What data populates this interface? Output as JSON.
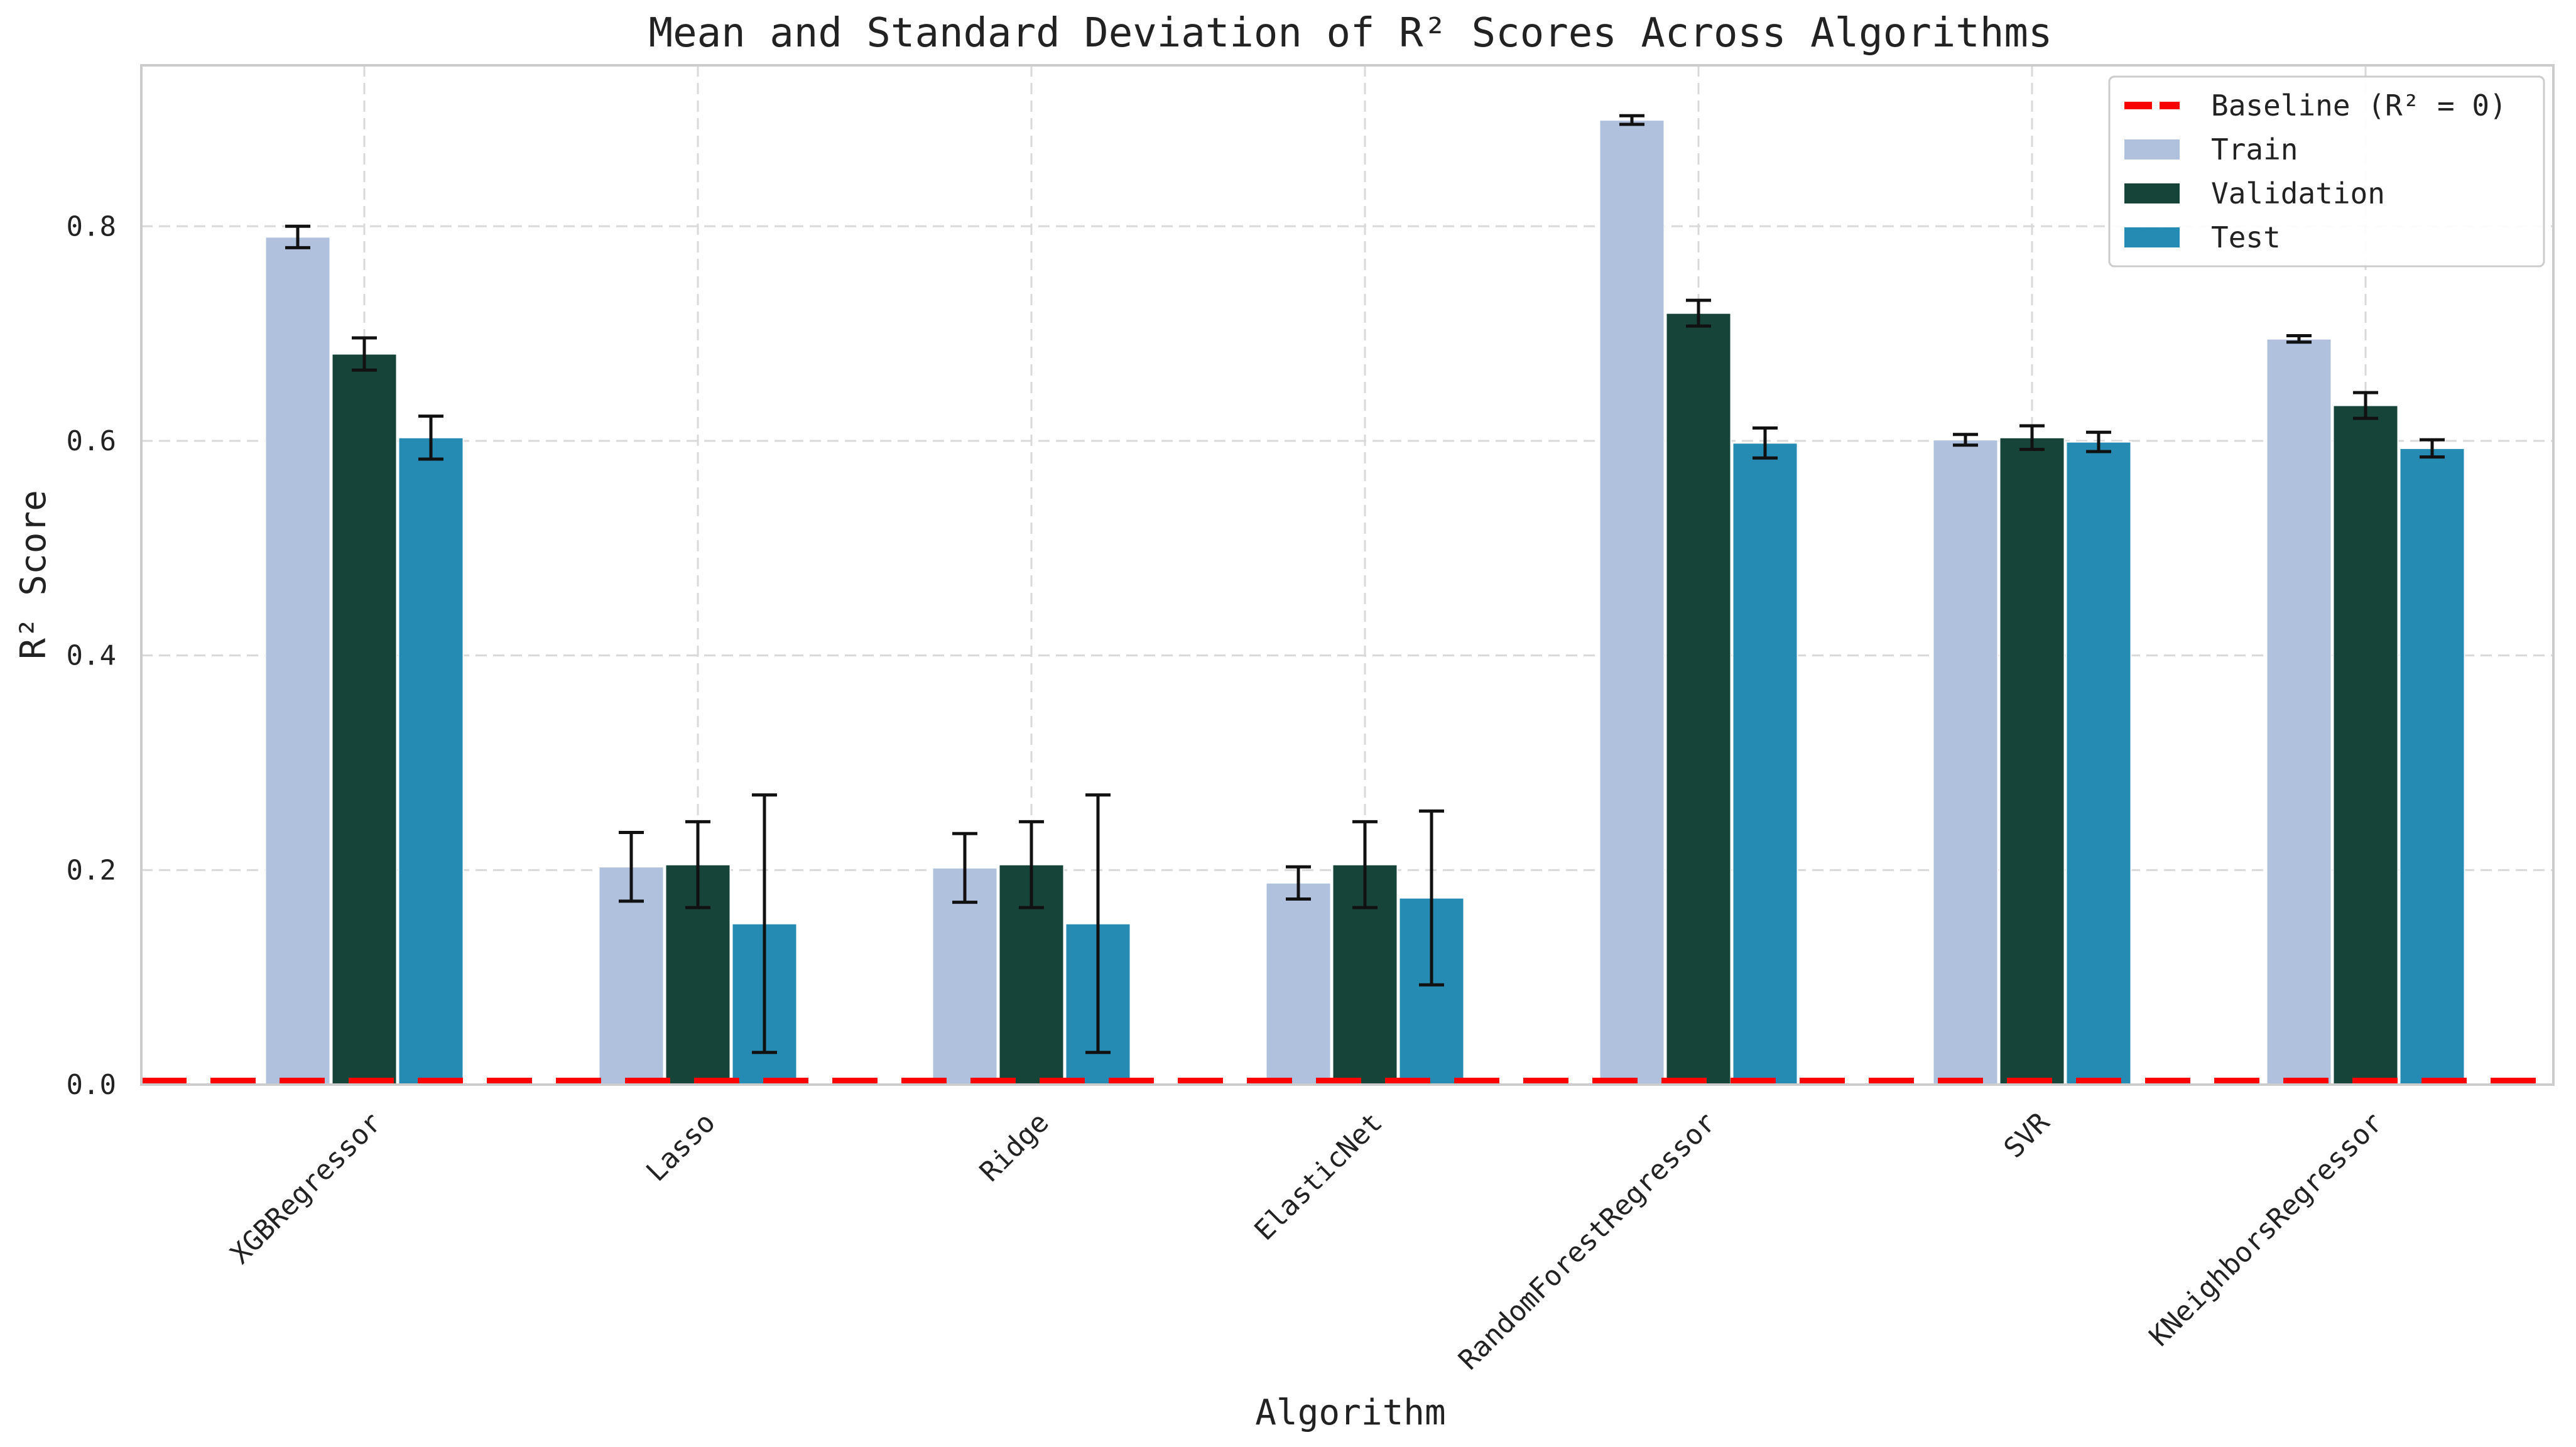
{
  "chart_data": {
    "type": "bar",
    "title": "Mean and Standard Deviation of R² Scores Across Algorithms",
    "xlabel": "Algorithm",
    "ylabel": "R² Score",
    "ylim": [
      0,
      0.95
    ],
    "yticks": [
      0.0,
      0.2,
      0.4,
      0.6,
      0.8
    ],
    "ytick_labels": [
      "0.0",
      "0.2",
      "0.4",
      "0.6",
      "0.8"
    ],
    "grid": true,
    "legend_position": "top-right",
    "categories": [
      "XGBRegressor",
      "Lasso",
      "Ridge",
      "ElasticNet",
      "RandomForestRegressor",
      "SVR",
      "KNeighborsRegressor"
    ],
    "series": [
      {
        "name": "Train",
        "color": "#b0c1de",
        "values": [
          0.79,
          0.203,
          0.202,
          0.188,
          0.899,
          0.601,
          0.695
        ],
        "errors": [
          0.01,
          0.032,
          0.032,
          0.015,
          0.004,
          0.005,
          0.003
        ]
      },
      {
        "name": "Validation",
        "color": "#174438",
        "values": [
          0.681,
          0.205,
          0.205,
          0.205,
          0.719,
          0.603,
          0.633
        ],
        "errors": [
          0.015,
          0.04,
          0.04,
          0.04,
          0.012,
          0.011,
          0.012
        ]
      },
      {
        "name": "Test",
        "color": "#268bb3",
        "values": [
          0.603,
          0.15,
          0.15,
          0.174,
          0.598,
          0.599,
          0.593
        ],
        "errors": [
          0.02,
          0.12,
          0.12,
          0.081,
          0.014,
          0.009,
          0.008
        ]
      }
    ],
    "baseline": {
      "name": "Baseline (R² = 0)",
      "value": 0,
      "color": "#ff0000"
    }
  }
}
